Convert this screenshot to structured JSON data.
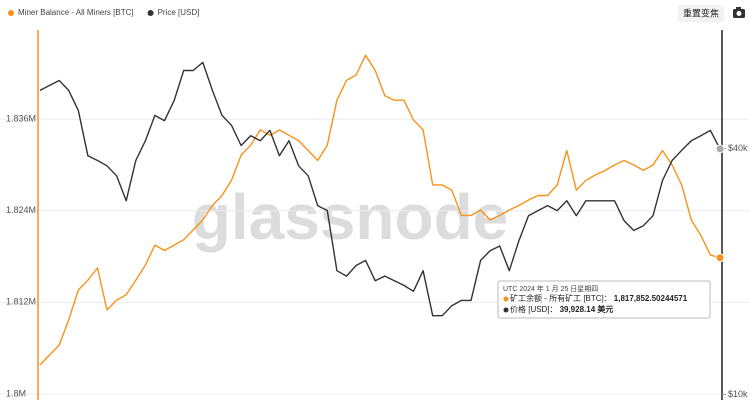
{
  "chart_data": {
    "type": "line",
    "legend": "top-left",
    "grid": true,
    "watermark": "glassnode",
    "reset_button": "重置变焦",
    "ylim": [
      1799200,
      1847700
    ],
    "yticks": [
      {
        "value": 1800000,
        "label": "1.8M"
      },
      {
        "value": 1812000,
        "label": "1.812M"
      },
      {
        "value": 1824000,
        "label": "1.824M"
      },
      {
        "value": 1836000,
        "label": "1.836M"
      }
    ],
    "y2lim": [
      9700,
      78000
    ],
    "y2scale": "log",
    "y2ticks": [
      {
        "value": 10000,
        "label": "$10k"
      },
      {
        "value": 40000,
        "label": "$40k"
      }
    ],
    "series": [
      {
        "name": "Miner Balance - All Miners [BTC]",
        "color": "#f7931a",
        "values": [
          1803800,
          1805100,
          1806400,
          1809700,
          1813600,
          1814900,
          1816500,
          1811000,
          1812300,
          1813000,
          1814900,
          1816900,
          1819500,
          1818800,
          1819500,
          1820200,
          1821500,
          1822800,
          1824700,
          1826000,
          1828000,
          1831300,
          1832600,
          1834600,
          1833900,
          1834600,
          1833900,
          1833200,
          1831900,
          1830600,
          1832600,
          1838500,
          1841100,
          1841800,
          1844400,
          1842400,
          1839100,
          1838500,
          1838500,
          1835900,
          1834600,
          1827400,
          1827400,
          1826700,
          1823400,
          1823400,
          1824100,
          1822800,
          1823400,
          1824100,
          1824700,
          1825400,
          1826000,
          1826000,
          1827400,
          1831900,
          1826700,
          1828000,
          1828700,
          1829300,
          1830000,
          1830600,
          1830000,
          1829300,
          1830000,
          1831900,
          1830000,
          1827400,
          1822800,
          1820800,
          1818200,
          1817853
        ]
      },
      {
        "name": "Price [USD]",
        "color": "#333333",
        "axis": "y2",
        "values": [
          55500,
          57100,
          58700,
          55500,
          49600,
          38400,
          37400,
          36300,
          34300,
          29800,
          37400,
          41800,
          48200,
          46800,
          52400,
          62100,
          62100,
          65000,
          55500,
          48200,
          45600,
          40700,
          43000,
          41800,
          44300,
          38400,
          41800,
          36300,
          34300,
          29000,
          28200,
          20100,
          19500,
          20700,
          21300,
          19000,
          19500,
          19000,
          18500,
          17900,
          20100,
          15600,
          15600,
          16500,
          17000,
          17000,
          21300,
          22500,
          23100,
          20100,
          23800,
          27400,
          28200,
          29000,
          28200,
          29800,
          27400,
          29800,
          29800,
          29800,
          29800,
          26600,
          25200,
          25900,
          27400,
          33400,
          37400,
          39600,
          41800,
          43000,
          44300,
          39928
        ]
      }
    ],
    "tooltip": {
      "date": "UTC 2024 年 1 月 25 日星期四",
      "miner_label": "矿工余额 - 所有矿工 [BTC]：",
      "miner_value": "1,817,852.50244571",
      "price_label": "价格 [USD]：",
      "price_value": "39,928.14 美元"
    }
  }
}
